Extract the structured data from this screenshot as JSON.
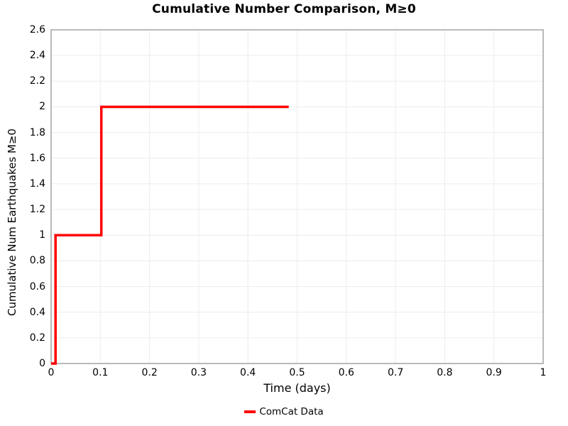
{
  "title": "Cumulative Number Comparison, M≥0",
  "axes": {
    "x_label": "Time (days)",
    "y_label": "Cumulative Num Earthquakes M≥0",
    "x_ticks": [
      "0",
      "0.1",
      "0.2",
      "0.3",
      "0.4",
      "0.5",
      "0.6",
      "0.7",
      "0.8",
      "0.9",
      "1"
    ],
    "y_ticks": [
      "0",
      "0.2",
      "0.4",
      "0.6",
      "0.8",
      "1",
      "1.2",
      "1.4",
      "1.6",
      "1.8",
      "2",
      "2.2",
      "2.4",
      "2.6"
    ]
  },
  "legend": {
    "items": [
      {
        "label": "ComCat Data",
        "color": "#ff0000"
      }
    ]
  },
  "colors": {
    "line": "#ff0000",
    "grid": "#ececec",
    "spine": "#a3a3a3",
    "text": "#000000"
  },
  "chart_data": {
    "type": "line",
    "style": "step-post",
    "title": "Cumulative Number Comparison, M≥0",
    "xlabel": "Time (days)",
    "ylabel": "Cumulative Num Earthquakes M≥0",
    "xlim": [
      0,
      1
    ],
    "ylim": [
      0,
      2.6
    ],
    "grid": true,
    "legend_position": "bottom-center",
    "series": [
      {
        "name": "ComCat Data",
        "color": "#ff0000",
        "line_width": 3.5,
        "event_times_days": [
          0.009,
          0.102
        ],
        "end_time_days": 0.483,
        "points": [
          [
            0,
            0
          ],
          [
            0.009,
            0
          ],
          [
            0.009,
            1
          ],
          [
            0.102,
            1
          ],
          [
            0.102,
            2
          ],
          [
            0.483,
            2
          ]
        ]
      }
    ]
  }
}
